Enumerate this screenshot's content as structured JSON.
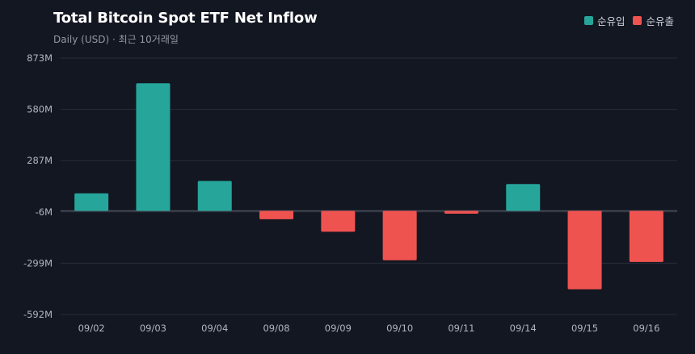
{
  "header": {
    "title": "Total Bitcoin Spot ETF Net Inflow",
    "subtitle": "Daily (USD) · 최근 10거래일"
  },
  "legend": {
    "inflow_label": "순유입",
    "outflow_label": "순유출"
  },
  "colors": {
    "background": "#131722",
    "inflow": "#26a69a",
    "outflow": "#ef5350",
    "grid": "#2a2e39",
    "zero_line": "#4a4f5c"
  },
  "chart_data": {
    "type": "bar",
    "title": "Total Bitcoin Spot ETF Net Inflow",
    "subtitle": "Daily (USD) · 최근 10거래일",
    "xlabel": "",
    "ylabel": "",
    "unit": "M USD",
    "categories": [
      "09/02",
      "09/03",
      "09/04",
      "09/08",
      "09/09",
      "09/10",
      "09/11",
      "09/14",
      "09/15",
      "09/16"
    ],
    "values": [
      100,
      729,
      171,
      -48,
      -119,
      -282,
      -16,
      153,
      -448,
      -292
    ],
    "yticks": [
      873,
      580,
      287,
      -6,
      -299,
      -592
    ],
    "ytick_labels": [
      "873M",
      "580M",
      "287M",
      "-6M",
      "-299M",
      "-592M"
    ],
    "ylim": [
      -592,
      873
    ],
    "baseline": 0,
    "grid": true,
    "legend_position": "top-right",
    "series": [
      {
        "name": "순유입",
        "sign": "positive"
      },
      {
        "name": "순유출",
        "sign": "negative"
      }
    ]
  }
}
